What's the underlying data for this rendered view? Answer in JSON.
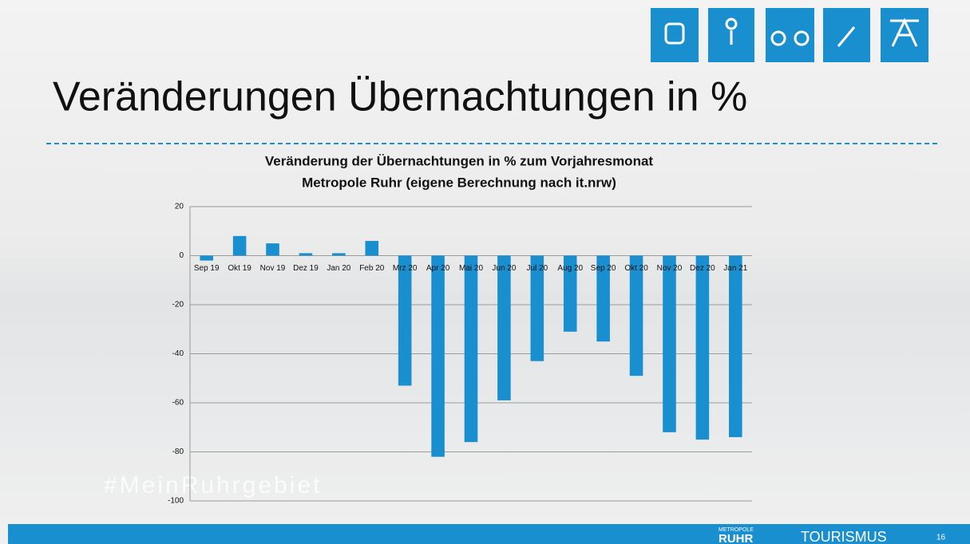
{
  "slide": {
    "title": "Veränderungen Übernachtungen in %",
    "watermark": "#MeinRuhrgebiet",
    "footer": {
      "brand_top": "METROPOLE",
      "brand": "RUHR",
      "brand_sub": "TOURISMUS",
      "page": "16"
    }
  },
  "chart_data": {
    "type": "bar",
    "title": "Veränderung der Übernachtungen in % zum Vorjahresmonat",
    "subtitle": "Metropole Ruhr (eigene Berechnung nach it.nrw)",
    "categories": [
      "Sep 19",
      "Okt 19",
      "Nov 19",
      "Dez 19",
      "Jan 20",
      "Feb 20",
      "Mrz 20",
      "Apr 20",
      "Mai 20",
      "Jun 20",
      "Jul 20",
      "Aug 20",
      "Sep 20",
      "Okt 20",
      "Nov 20",
      "Dez 20",
      "Jan 21"
    ],
    "values": [
      -2,
      8,
      5,
      1,
      1,
      6,
      -53,
      -82,
      -76,
      -59,
      -43,
      -31,
      -35,
      -49,
      -72,
      -75,
      -74
    ],
    "color": "#1a8fd0",
    "ylim": [
      -100,
      20
    ],
    "yticks": [
      20,
      0,
      -20,
      -40,
      -60,
      -80,
      -100
    ],
    "grid": true
  }
}
